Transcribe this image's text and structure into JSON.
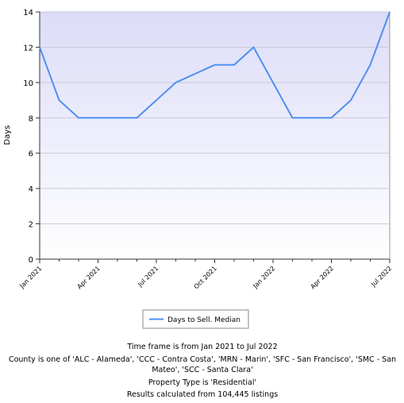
{
  "chart_data": {
    "type": "line",
    "y_label": "Days",
    "categories": [
      "Jan 2021",
      null,
      null,
      "Apr 2021",
      null,
      null,
      "Jul 2021",
      null,
      null,
      "Oct 2021",
      null,
      null,
      "Jan 2022",
      null,
      null,
      "Apr 2022",
      null,
      null,
      "Jul 2022"
    ],
    "series": [
      {
        "name": "Days to Sell. Median",
        "color": "#4f8ff0",
        "values": [
          12,
          9,
          8,
          8,
          8,
          8,
          9,
          10,
          10.5,
          11,
          11,
          12,
          10,
          8,
          8,
          8,
          9,
          11,
          14
        ]
      }
    ],
    "ylim": [
      0,
      14
    ],
    "yticks": [
      0,
      2,
      4,
      6,
      8,
      10,
      12,
      14
    ],
    "grid": true,
    "notes": [
      "Time frame is from Jan 2021 to Jul 2022",
      "County is one of 'ALC - Alameda', 'CCC - Contra Costa', 'MRN - Marin', 'SFC - San Francisco', 'SMC - San Mateo', 'SCC - Santa Clara'",
      "Property Type is 'Residential'",
      "Results calculated from 104,445 listings"
    ]
  }
}
